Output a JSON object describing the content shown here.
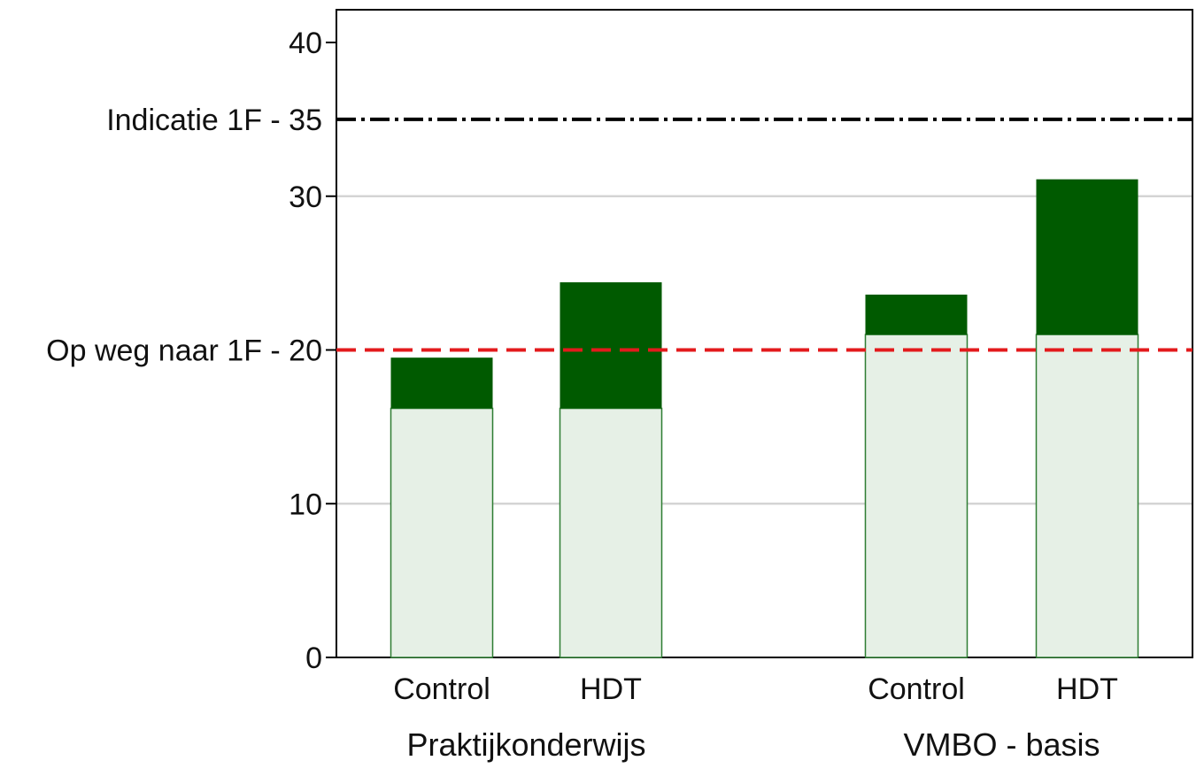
{
  "chart_data": {
    "type": "bar",
    "stacked": true,
    "groups": [
      {
        "label": "Praktijkonderwijs",
        "categories": [
          "Control",
          "HDT"
        ]
      },
      {
        "label": "VMBO - basis",
        "categories": [
          "Control",
          "HDT"
        ]
      }
    ],
    "categories": [
      "Control",
      "HDT",
      "Control",
      "HDT"
    ],
    "series": [
      {
        "values": [
          16.2,
          16.2,
          21.0,
          21.0
        ],
        "color": "#e6f0e6",
        "stroke": "#2e7d32"
      },
      {
        "values": [
          3.3,
          8.2,
          2.6,
          10.1
        ],
        "color": "#005a00"
      }
    ],
    "totals": [
      19.5,
      24.4,
      23.6,
      31.1
    ],
    "ylim": [
      0,
      42
    ],
    "yticks": [
      0,
      10,
      20,
      30,
      40
    ],
    "gridlines": [
      10,
      30
    ],
    "reference_lines": [
      {
        "value": 35,
        "label": "Indicatie 1F - 35",
        "color": "#000000",
        "style": "dash-dot"
      },
      {
        "value": 20,
        "label": "Op weg naar 1F - 20",
        "color": "#e31a1c",
        "style": "dashed"
      }
    ],
    "tick_labels": [
      "0",
      "10",
      "30",
      "40"
    ],
    "grid": true,
    "legend": "none",
    "title": "",
    "xlabel": "",
    "ylabel": ""
  }
}
